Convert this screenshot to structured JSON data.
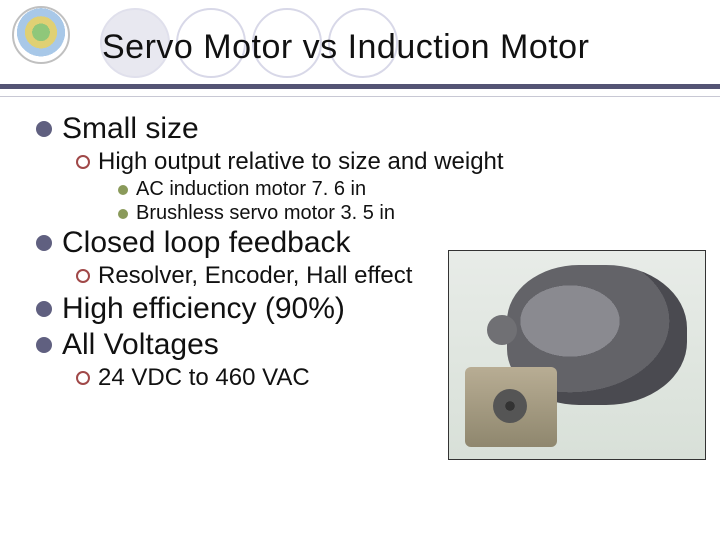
{
  "title": "Servo Motor vs Induction Motor",
  "bullets": {
    "small_size": "Small size",
    "high_output": "High output relative to size and weight",
    "ac_induction": "AC induction motor 7. 6 in",
    "brushless": "Brushless servo motor 3. 5 in",
    "closed_loop": "Closed loop feedback",
    "resolver": "Resolver, Encoder, Hall effect",
    "high_eff": "High efficiency (90%)",
    "all_voltages": "All Voltages",
    "vdc_range": "24 VDC to 460 VAC"
  },
  "colors": {
    "rule_dark": "#545474",
    "l1_bullet": "#606080",
    "l2_bullet": "#a04848",
    "l3_bullet": "#8a9a5a"
  }
}
